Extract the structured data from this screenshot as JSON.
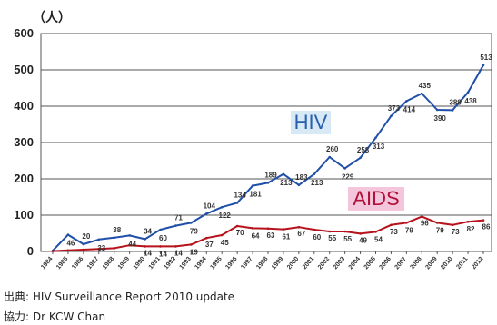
{
  "chart_data": {
    "type": "line",
    "unit_label": "（人）",
    "yticks": [
      0,
      100,
      200,
      300,
      400,
      500,
      600
    ],
    "ylim": [
      0,
      600
    ],
    "grid": true,
    "x": [
      "1984",
      "1985",
      "1986",
      "1987",
      "1988",
      "1989",
      "1990",
      "1991",
      "1992",
      "1993",
      "1994",
      "1995",
      "1996",
      "1997",
      "1998",
      "1999",
      "2000",
      "2001",
      "2002",
      "2003",
      "2004",
      "2005",
      "2006",
      "2007",
      "2008",
      "2009",
      "2010",
      "2011",
      "2012"
    ],
    "series": [
      {
        "name": "HIV",
        "color": "#1f4fa8",
        "label_bg": "#d6e9f5",
        "label_color": "#2a5fb0",
        "values": [
          2,
          46,
          20,
          33,
          38,
          44,
          34,
          60,
          71,
          79,
          104,
          122,
          134,
          181,
          189,
          213,
          183,
          213,
          260,
          229,
          258,
          313,
          373,
          414,
          435,
          390,
          389,
          438,
          513
        ],
        "labels": [
          "",
          "46",
          "20",
          "33",
          "38",
          "44",
          "34",
          "60",
          "71",
          "79",
          "104",
          "122",
          "134",
          "181",
          "189",
          "213",
          "183",
          "213",
          "260",
          "229",
          "258",
          "313",
          "373",
          "414",
          "435",
          "390",
          "389",
          "438",
          "513"
        ]
      },
      {
        "name": "AIDS",
        "color": "#b5121b",
        "label_bg": "#f4c6dc",
        "label_color": "#b0103a",
        "values": [
          1,
          3,
          5,
          7,
          9,
          17,
          14,
          14,
          14,
          19,
          37,
          45,
          70,
          64,
          63,
          61,
          67,
          60,
          55,
          55,
          49,
          54,
          73,
          79,
          96,
          79,
          73,
          82,
          86
        ],
        "labels": [
          "",
          "",
          "",
          "",
          "",
          "",
          "14",
          "14",
          "14",
          "19",
          "37",
          "45",
          "70",
          "64",
          "63",
          "61",
          "67",
          "60",
          "55",
          "55",
          "49",
          "54",
          "73",
          "79",
          "96",
          "79",
          "73",
          "82",
          "86"
        ]
      }
    ]
  },
  "footer": {
    "source": "出典: HIV Surveillance Report 2010 update",
    "cooperation": "協力: Dr KCW Chan"
  }
}
